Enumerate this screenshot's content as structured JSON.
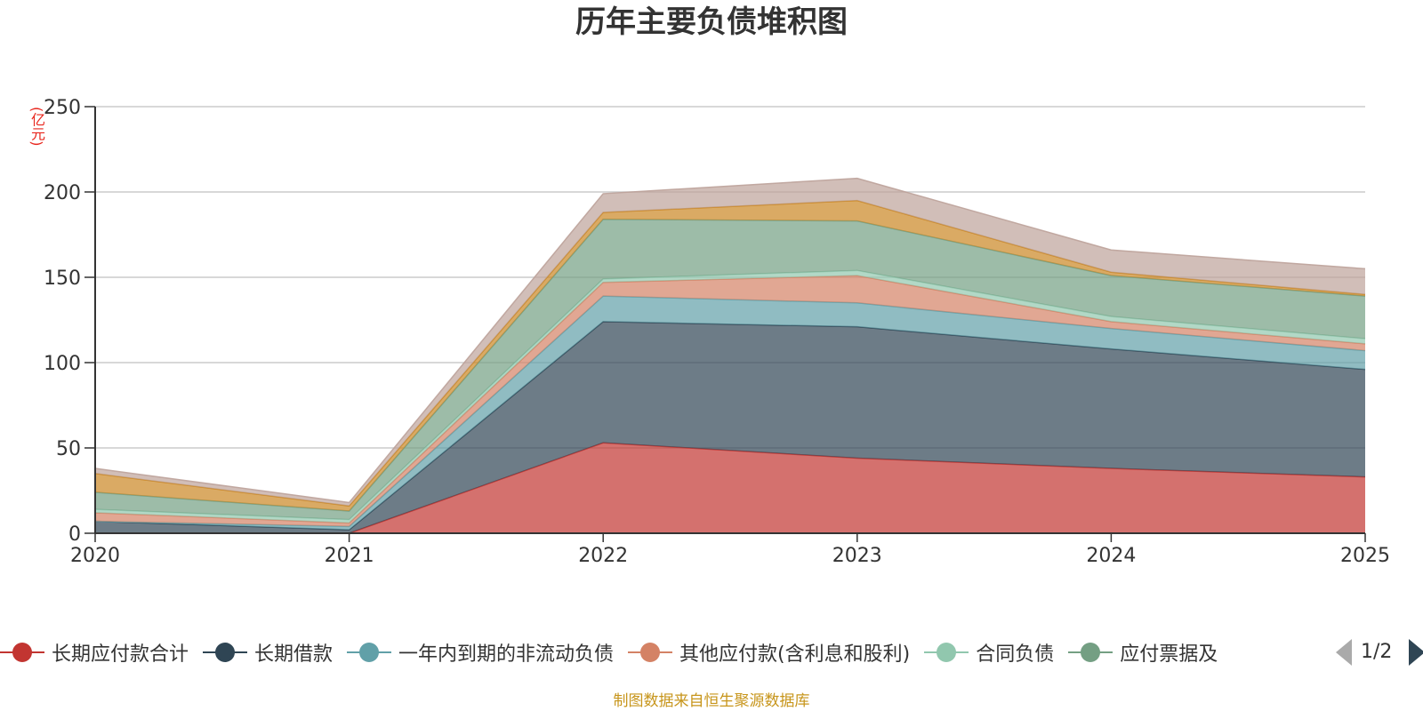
{
  "chart_data": {
    "type": "area",
    "stacked": true,
    "title": "历年主要负债堆积图",
    "ylabel": "(亿元)",
    "xlabel": "",
    "x": [
      "2020",
      "2021",
      "2022",
      "2023",
      "2024",
      "2025"
    ],
    "yticks": [
      "0",
      "50",
      "100",
      "150",
      "200",
      "250"
    ],
    "ylim": [
      0,
      250
    ],
    "grid": true,
    "series": [
      {
        "name": "长期应付款合计",
        "color": "#c23531",
        "values": [
          0,
          0,
          53,
          44,
          38,
          33
        ]
      },
      {
        "name": "长期借款",
        "color": "#2f4554",
        "values": [
          7,
          2,
          71,
          77,
          70,
          63
        ]
      },
      {
        "name": "一年内到期的非流动负债",
        "color": "#61a0a8",
        "values": [
          0,
          2,
          15,
          14,
          12,
          11
        ]
      },
      {
        "name": "其他应付款(含利息和股利)",
        "color": "#d48265",
        "values": [
          5,
          2,
          8,
          16,
          4,
          4
        ]
      },
      {
        "name": "合同负债",
        "color": "#91c7ae",
        "values": [
          2,
          2,
          2,
          3,
          3,
          3
        ]
      },
      {
        "name": "应付票据及应付账款",
        "color": "#749f83",
        "values": [
          10,
          5,
          35,
          29,
          24,
          25
        ]
      },
      {
        "name": "",
        "color": "#ca8622",
        "values": [
          11,
          3,
          4,
          12,
          2,
          1
        ]
      },
      {
        "name": "",
        "color": "#bda29a",
        "values": [
          3,
          2,
          11,
          13,
          13,
          15
        ]
      }
    ],
    "legend_visible": [
      "长期应付款合计",
      "长期借款",
      "一年内到期的非流动负债",
      "其他应付款(含利息和股利)",
      "合同负债",
      "应付票据及"
    ],
    "legend_position": "bottom",
    "legend_page": "1/2",
    "source": "制图数据来自恒生聚源数据库"
  }
}
